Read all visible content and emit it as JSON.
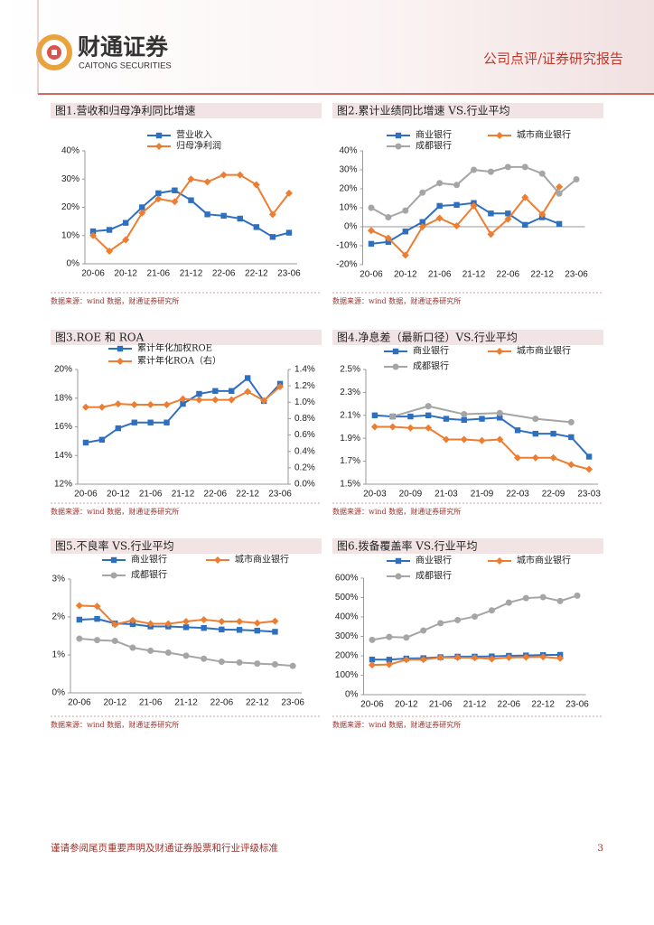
{
  "header": {
    "brand": "财通证券",
    "brand_en": "CAITONG SECURITIES",
    "doc_type": "公司点评/证券研究报告"
  },
  "footer": {
    "disclaimer": "谨请参阅尾页重要声明及财通证券股票和行业评级标准",
    "page": 3
  },
  "chart_data": [
    {
      "type": "line",
      "title": "图1.营收和归母净利同比增速",
      "source": "数据来源：wind 数据，财通证券研究所",
      "legend": "top",
      "categories": [
        "20-06",
        null,
        "20-12",
        null,
        "21-06",
        null,
        "21-12",
        null,
        "22-06",
        null,
        "22-12",
        null,
        "23-06"
      ],
      "series": [
        {
          "name": "营业收入",
          "color": "#2f6fc0",
          "marker": "square",
          "values": [
            11.5,
            12,
            14.5,
            20,
            25,
            26,
            22.5,
            17.5,
            17,
            16,
            13,
            9.5,
            11
          ]
        },
        {
          "name": "归母净利润",
          "color": "#ed7d31",
          "marker": "diamond",
          "values": [
            10,
            4.5,
            8.5,
            18,
            23,
            22,
            30,
            29,
            31.5,
            31.5,
            28,
            17.5,
            25
          ]
        }
      ],
      "ylim": [
        0,
        40
      ],
      "yticks": [
        {
          "value": 0,
          "label": "0%"
        },
        {
          "value": 10,
          "label": "10%"
        },
        {
          "value": 20,
          "label": "20%"
        },
        {
          "value": 30,
          "label": "30%"
        },
        {
          "value": 40,
          "label": "40%"
        }
      ]
    },
    {
      "type": "line",
      "title": "图2.累计业绩同比增速 VS.行业平均",
      "source": "数据来源：wind 数据，财通证券研究所",
      "legend": "top",
      "categories": [
        "20-06",
        null,
        "20-12",
        null,
        "21-06",
        null,
        "21-12",
        null,
        "22-06",
        null,
        "22-12",
        null,
        "23-06"
      ],
      "series": [
        {
          "name": "商业银行",
          "color": "#2f6fc0",
          "marker": "square",
          "values": [
            -9,
            -8,
            -2.5,
            2.5,
            11,
            11.5,
            12.5,
            7,
            7,
            1,
            5,
            1.5,
            null
          ]
        },
        {
          "name": "城市商业银行",
          "color": "#ed7d31",
          "marker": "diamond",
          "values": [
            -2,
            -6,
            -15,
            0,
            4.5,
            0.5,
            11,
            -4,
            4,
            15.5,
            6.5,
            21,
            null
          ]
        },
        {
          "name": "成都银行",
          "color": "#a5a5a5",
          "marker": "circle",
          "values": [
            10,
            5,
            8.5,
            18,
            23,
            22,
            30,
            29,
            31.5,
            31.5,
            28,
            17.5,
            25
          ]
        }
      ],
      "ylim": [
        -20,
        40
      ],
      "yticks": [
        {
          "value": -20,
          "label": "-20%"
        },
        {
          "value": -10,
          "label": "-10%"
        },
        {
          "value": 0,
          "label": "0%"
        },
        {
          "value": 10,
          "label": "10%"
        },
        {
          "value": 20,
          "label": "20%"
        },
        {
          "value": 30,
          "label": "30%"
        },
        {
          "value": 40,
          "label": "40%"
        }
      ]
    },
    {
      "type": "line",
      "title": "图3.ROE 和 ROA",
      "source": "数据来源：wind 数据，财通证券研究所",
      "legend": "top",
      "categories": [
        "20-06",
        null,
        "20-12",
        null,
        "21-06",
        null,
        "21-12",
        null,
        "22-06",
        null,
        "22-12",
        null,
        "23-06"
      ],
      "series": [
        {
          "name": "累计年化加权ROE",
          "color": "#2f6fc0",
          "marker": "square",
          "values": [
            14.9,
            15.1,
            15.9,
            16.3,
            16.3,
            16.3,
            17.6,
            18.3,
            18.5,
            18.5,
            19.4,
            17.8,
            19.0
          ]
        },
        {
          "name": "累计年化ROA（右）",
          "color": "#ed7d31",
          "marker": "diamond",
          "axis": "y2",
          "values": [
            0.94,
            0.94,
            0.98,
            0.97,
            0.97,
            0.97,
            1.04,
            1.03,
            1.03,
            1.03,
            1.13,
            1.02,
            1.19
          ]
        }
      ],
      "ylim": [
        12,
        20
      ],
      "yticks": [
        {
          "value": 12,
          "label": "12%"
        },
        {
          "value": 14,
          "label": "14%"
        },
        {
          "value": 16,
          "label": "16%"
        },
        {
          "value": 18,
          "label": "18%"
        },
        {
          "value": 20,
          "label": "20%"
        }
      ],
      "y2lim": [
        0,
        1.4
      ],
      "y2ticks": [
        {
          "value": 0,
          "label": "0.0%"
        },
        {
          "value": 0.2,
          "label": "0.2%"
        },
        {
          "value": 0.4,
          "label": "0.4%"
        },
        {
          "value": 0.6,
          "label": "0.6%"
        },
        {
          "value": 0.8,
          "label": "0.8%"
        },
        {
          "value": 1.0,
          "label": "1.0%"
        },
        {
          "value": 1.2,
          "label": "1.2%"
        },
        {
          "value": 1.4,
          "label": "1.4%"
        }
      ]
    },
    {
      "type": "line",
      "title": "图4.净息差（最新口径）VS.行业平均",
      "source": "数据来源：wind 数据，财通证券研究所",
      "legend": "top",
      "categories": [
        "20-03",
        null,
        "20-09",
        null,
        "21-03",
        null,
        "21-09",
        null,
        "22-03",
        null,
        "22-09",
        null,
        "23-03"
      ],
      "series": [
        {
          "name": "商业银行",
          "color": "#2f6fc0",
          "marker": "square",
          "values": [
            2.1,
            2.09,
            2.09,
            2.1,
            2.07,
            2.06,
            2.07,
            2.08,
            1.97,
            1.94,
            1.94,
            1.91,
            1.74
          ]
        },
        {
          "name": "城市商业银行",
          "color": "#ed7d31",
          "marker": "diamond",
          "values": [
            2.0,
            2.0,
            1.99,
            1.99,
            1.89,
            1.89,
            1.88,
            1.89,
            1.73,
            1.73,
            1.73,
            1.67,
            1.63
          ]
        },
        {
          "name": "成都银行",
          "color": "#a5a5a5",
          "marker": "circle",
          "values": [
            null,
            2.09,
            null,
            2.18,
            null,
            2.11,
            null,
            2.12,
            null,
            2.07,
            null,
            2.04,
            null
          ]
        }
      ],
      "ylim": [
        1.5,
        2.5
      ],
      "yticks": [
        {
          "value": 1.5,
          "label": "1.5%"
        },
        {
          "value": 1.7,
          "label": "1.7%"
        },
        {
          "value": 1.9,
          "label": "1.9%"
        },
        {
          "value": 2.1,
          "label": "2.1%"
        },
        {
          "value": 2.3,
          "label": "2.3%"
        },
        {
          "value": 2.5,
          "label": "2.5%"
        }
      ]
    },
    {
      "type": "line",
      "title": "图5.不良率 VS.行业平均",
      "source": "数据来源：wind 数据，财通证券研究所",
      "legend": "top",
      "categories": [
        "20-06",
        null,
        "20-12",
        null,
        "21-06",
        null,
        "21-12",
        null,
        "22-06",
        null,
        "22-12",
        null,
        "23-06"
      ],
      "series": [
        {
          "name": "商业银行",
          "color": "#2f6fc0",
          "marker": "square",
          "values": [
            1.93,
            1.95,
            1.83,
            1.81,
            1.75,
            1.75,
            1.73,
            1.71,
            1.67,
            1.66,
            1.64,
            1.61,
            null
          ]
        },
        {
          "name": "城市商业银行",
          "color": "#ed7d31",
          "marker": "diamond",
          "values": [
            2.3,
            2.28,
            1.8,
            1.91,
            1.82,
            1.82,
            1.88,
            1.93,
            1.88,
            1.88,
            1.84,
            1.89,
            null
          ]
        },
        {
          "name": "成都银行",
          "color": "#a5a5a5",
          "marker": "circle",
          "values": [
            1.43,
            1.39,
            1.37,
            1.19,
            1.11,
            1.06,
            0.98,
            0.9,
            0.82,
            0.8,
            0.77,
            0.75,
            0.71
          ]
        }
      ],
      "ylim": [
        0,
        3
      ],
      "yticks": [
        {
          "value": 0,
          "label": "0%"
        },
        {
          "value": 1,
          "label": "1%"
        },
        {
          "value": 2,
          "label": "2%"
        },
        {
          "value": 3,
          "label": "3%"
        }
      ]
    },
    {
      "type": "line",
      "title": "图6.拨备覆盖率 VS.行业平均",
      "source": "数据来源：wind 数据，财通证券研究所",
      "legend": "top",
      "categories": [
        "20-06",
        null,
        "20-12",
        null,
        "21-06",
        null,
        "21-12",
        null,
        "22-06",
        null,
        "22-12",
        null,
        "23-06"
      ],
      "series": [
        {
          "name": "商业银行",
          "color": "#2f6fc0",
          "marker": "square",
          "values": [
            181,
            180,
            186,
            188,
            193,
            196,
            196,
            197,
            200,
            202,
            204,
            205,
            null
          ]
        },
        {
          "name": "城市商业银行",
          "color": "#ed7d31",
          "marker": "diamond",
          "values": [
            153,
            155,
            180,
            181,
            191,
            191,
            190,
            184,
            191,
            193,
            194,
            187,
            null
          ]
        },
        {
          "name": "成都银行",
          "color": "#a5a5a5",
          "marker": "circle",
          "values": [
            282,
            297,
            294,
            330,
            368,
            384,
            402,
            434,
            474,
            497,
            502,
            482,
            510
          ]
        }
      ],
      "ylim": [
        0,
        600
      ],
      "yticks": [
        {
          "value": 0,
          "label": "0%"
        },
        {
          "value": 100,
          "label": "100%"
        },
        {
          "value": 200,
          "label": "200%"
        },
        {
          "value": 300,
          "label": "300%"
        },
        {
          "value": 400,
          "label": "400%"
        },
        {
          "value": 500,
          "label": "500%"
        },
        {
          "value": 600,
          "label": "600%"
        }
      ]
    }
  ]
}
